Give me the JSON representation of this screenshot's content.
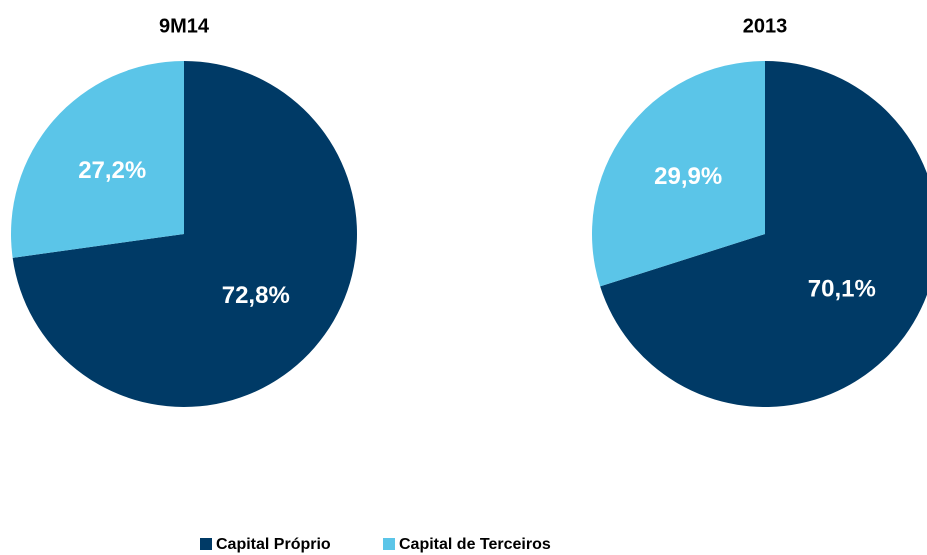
{
  "chart_data": [
    {
      "type": "pie",
      "title": "9M14",
      "values": [
        72.8,
        27.2
      ],
      "value_labels": [
        "72,8%",
        "27,2%"
      ]
    },
    {
      "type": "pie",
      "title": "2013",
      "values": [
        70.1,
        29.9
      ],
      "value_labels": [
        "70,1%",
        "29,9%"
      ]
    }
  ],
  "legend": {
    "categories": [
      "Capital Próprio",
      "Capital de Terceiros"
    ],
    "colors": [
      "#003a66",
      "#5bc5e8"
    ]
  }
}
